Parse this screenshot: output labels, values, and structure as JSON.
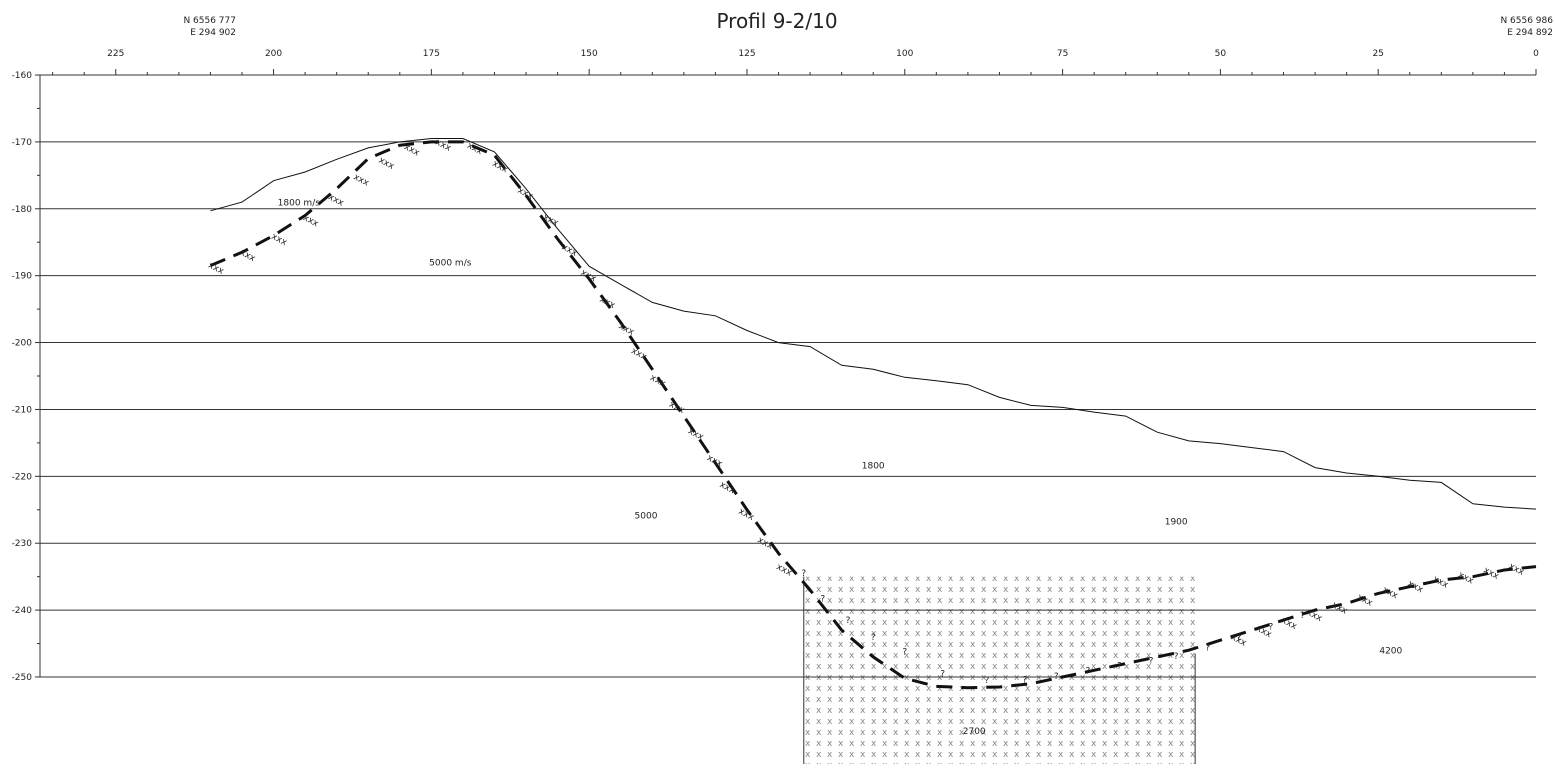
{
  "chart_data": {
    "type": "line",
    "title": "Profil 9-2/10",
    "endpoints": {
      "left": {
        "north": "N 6556 777",
        "east": "E 294 902"
      },
      "right": {
        "north": "N 6556 986",
        "east": "E 294 892"
      }
    },
    "xlim": [
      237,
      0
    ],
    "ylim": [
      -160,
      -250
    ],
    "grid": true,
    "x_ticks": [
      225,
      200,
      175,
      150,
      125,
      100,
      75,
      50,
      25,
      0
    ],
    "y_ticks": [
      -160,
      -170,
      -180,
      -190,
      -200,
      -210,
      -220,
      -230,
      -240,
      -250
    ],
    "x_tick_labels": [
      "225",
      "200",
      "175",
      "150",
      "125",
      "100",
      "75",
      "50",
      "25",
      "0"
    ],
    "y_tick_labels": [
      "-160",
      "-170",
      "-180",
      "-190",
      "-200",
      "-210",
      "-220",
      "-230",
      "-240",
      "-250"
    ],
    "series": [
      {
        "style": "solid",
        "x": [
          210,
          205,
          200,
          195,
          190,
          185,
          180,
          175,
          170,
          165,
          160,
          155,
          150,
          145,
          140,
          135,
          130,
          125,
          120,
          115,
          110,
          105,
          100,
          95,
          90,
          85,
          80,
          75,
          70,
          65,
          60,
          55,
          50,
          45,
          40,
          35,
          30,
          25,
          20,
          15,
          10,
          5,
          0
        ],
        "y": [
          -180.3,
          -179,
          -175.8,
          -174.5,
          -172.6,
          -170.9,
          -170.0,
          -169.5,
          -169.5,
          -171.5,
          -177,
          -183,
          -188.6,
          -191.3,
          -194,
          -195.3,
          -196,
          -198.2,
          -200,
          -200.6,
          -203.4,
          -204,
          -205.2,
          -205.7,
          -206.3,
          -208.2,
          -209.4,
          -209.7,
          -210.4,
          -211,
          -213.4,
          -214.7,
          -215.1,
          -215.7,
          -216.3,
          -218.7,
          -219.5,
          -220,
          -220.6,
          -220.9,
          -224.1,
          -224.6,
          -224.9
        ]
      },
      {
        "style": "dashed",
        "x": [
          210,
          205,
          200,
          195,
          190,
          185,
          180,
          175,
          170,
          165,
          160,
          155,
          150,
          145,
          140,
          135,
          130,
          125,
          120,
          115,
          110,
          105,
          100,
          95,
          90,
          85,
          80,
          75,
          70,
          65,
          60,
          55,
          50,
          45,
          40,
          35,
          30,
          25,
          20,
          15,
          10,
          5,
          0
        ],
        "y": [
          -188.5,
          -186.5,
          -184,
          -181,
          -177,
          -172.5,
          -170.5,
          -170,
          -170,
          -172,
          -178,
          -184.5,
          -190.5,
          -197,
          -204,
          -211,
          -218,
          -225,
          -231.5,
          -237,
          -243,
          -247,
          -250.2,
          -251.4,
          -251.6,
          -251.5,
          -251,
          -250,
          -249,
          -248,
          -247,
          -246,
          -244.5,
          -243,
          -241.5,
          -240,
          -239,
          -237.5,
          -236.5,
          -235.5,
          -235,
          -234,
          -233.5
        ]
      }
    ],
    "hatched_zone": {
      "x_start": 116,
      "x_end": 54,
      "y_top": -235,
      "y_bottom": -263
    },
    "annotations": [
      {
        "text": "1800 m/s",
        "x": 196,
        "y": -179.5
      },
      {
        "text": "5000 m/s",
        "x": 172,
        "y": -188.5
      },
      {
        "text": "1800",
        "x": 105,
        "y": -218.8
      },
      {
        "text": "5000",
        "x": 141,
        "y": -226.3
      },
      {
        "text": "1900",
        "x": 57,
        "y": -227.2
      },
      {
        "text": "4200",
        "x": 23,
        "y": -246.5
      },
      {
        "text": "2700",
        "x": 89,
        "y": -258.5
      }
    ],
    "x_marks": [
      {
        "x": 209,
        "y": -188.7
      },
      {
        "x": 204,
        "y": -186.8
      },
      {
        "x": 199,
        "y": -184.4
      },
      {
        "x": 194,
        "y": -181.6
      },
      {
        "x": 190,
        "y": -178.5
      },
      {
        "x": 186,
        "y": -175.5
      },
      {
        "x": 182,
        "y": -173
      },
      {
        "x": 178,
        "y": -171
      },
      {
        "x": 173,
        "y": -170.3
      },
      {
        "x": 168,
        "y": -170.8
      },
      {
        "x": 164,
        "y": -173.5
      },
      {
        "x": 160,
        "y": -177.5
      },
      {
        "x": 156,
        "y": -181.5
      },
      {
        "x": 153,
        "y": -186
      },
      {
        "x": 150,
        "y": -189.8
      },
      {
        "x": 147,
        "y": -193.8
      },
      {
        "x": 144,
        "y": -197.8
      },
      {
        "x": 142,
        "y": -201.5
      },
      {
        "x": 139,
        "y": -205.5
      },
      {
        "x": 136,
        "y": -209.5
      },
      {
        "x": 133,
        "y": -213.5
      },
      {
        "x": 130,
        "y": -217.5
      },
      {
        "x": 128,
        "y": -221.5
      },
      {
        "x": 125,
        "y": -225.5
      },
      {
        "x": 122,
        "y": -229.8
      },
      {
        "x": 119,
        "y": -233.8
      },
      {
        "x": 31,
        "y": -239.5
      },
      {
        "x": 27,
        "y": -238.3
      },
      {
        "x": 23,
        "y": -237.2
      },
      {
        "x": 19,
        "y": -236.3
      },
      {
        "x": 15,
        "y": -235.6
      },
      {
        "x": 11,
        "y": -235
      },
      {
        "x": 7,
        "y": -234.3
      },
      {
        "x": 3,
        "y": -233.7
      },
      {
        "x": 47,
        "y": -244.3
      },
      {
        "x": 43,
        "y": -243
      },
      {
        "x": 39,
        "y": -241.8
      },
      {
        "x": 35,
        "y": -240.6
      }
    ],
    "question_marks": [
      {
        "x": 116,
        "y": -235.2
      },
      {
        "x": 113,
        "y": -239
      },
      {
        "x": 109,
        "y": -242.2
      },
      {
        "x": 105,
        "y": -244.8
      },
      {
        "x": 100,
        "y": -246.9
      },
      {
        "x": 94,
        "y": -250.2
      },
      {
        "x": 87,
        "y": -251.2
      },
      {
        "x": 81,
        "y": -251.1
      },
      {
        "x": 76,
        "y": -250.6
      },
      {
        "x": 71,
        "y": -249.8
      },
      {
        "x": 66,
        "y": -249
      },
      {
        "x": 61,
        "y": -248.3
      },
      {
        "x": 57,
        "y": -247.6
      },
      {
        "x": 52,
        "y": -246.3
      },
      {
        "x": 47,
        "y": -244.8
      },
      {
        "x": 42,
        "y": -243.2
      },
      {
        "x": 37,
        "y": -241.5
      }
    ]
  }
}
